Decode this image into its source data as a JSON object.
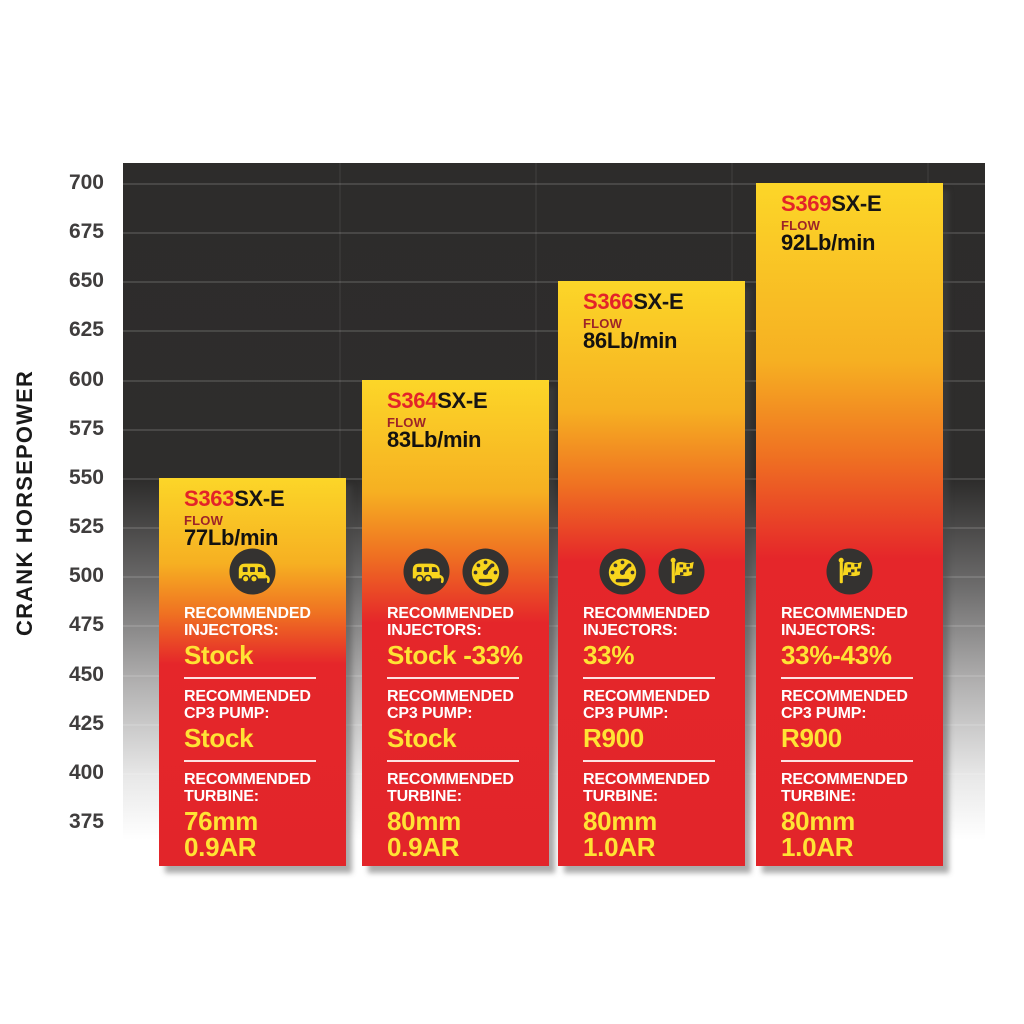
{
  "axis": {
    "label": "CRANK HORSEPOWER"
  },
  "chart_data": {
    "type": "bar",
    "title": "",
    "categories": [
      "S363SX-E",
      "S364SX-E",
      "S366SX-E",
      "S369SX-E"
    ],
    "values": [
      550,
      600,
      650,
      700
    ],
    "xlabel": "",
    "ylabel": "CRANK HORSEPOWER",
    "ylim": [
      375,
      700
    ],
    "yticks": [
      700,
      675,
      650,
      625,
      600,
      575,
      550,
      525,
      500,
      475,
      450,
      425,
      400,
      375
    ],
    "grid": true,
    "legend": "none",
    "bar_gradient": [
      "#fcd628",
      "#e5262a"
    ],
    "flow_lb_per_min": [
      77,
      83,
      86,
      92
    ]
  },
  "bars": [
    {
      "model_prefix": "S363",
      "model_suffix": "SX-E",
      "flow_label": "FLOW",
      "flow_value": "77Lb/min",
      "icons": [
        "camper-icon"
      ],
      "sections": [
        {
          "label_lines": [
            "RECOMMENDED",
            "INJECTORS:"
          ],
          "value_lines": [
            "Stock",
            ""
          ]
        },
        {
          "label_lines": [
            "RECOMMENDED",
            "CP3 PUMP:"
          ],
          "value_lines": [
            "Stock",
            ""
          ]
        },
        {
          "label_lines": [
            "RECOMMENDED",
            "TURBINE:"
          ],
          "value_lines": [
            "76mm",
            "0.9AR"
          ]
        }
      ]
    },
    {
      "model_prefix": "S364",
      "model_suffix": "SX-E",
      "flow_label": "FLOW",
      "flow_value": "83Lb/min",
      "icons": [
        "camper-icon",
        "gauge-icon"
      ],
      "sections": [
        {
          "label_lines": [
            "RECOMMENDED",
            "INJECTORS:"
          ],
          "value_lines": [
            "Stock -33%",
            ""
          ]
        },
        {
          "label_lines": [
            "RECOMMENDED",
            "CP3 PUMP:"
          ],
          "value_lines": [
            "Stock",
            ""
          ]
        },
        {
          "label_lines": [
            "RECOMMENDED",
            "TURBINE:"
          ],
          "value_lines": [
            "80mm",
            "0.9AR"
          ]
        }
      ]
    },
    {
      "model_prefix": "S366",
      "model_suffix": "SX-E",
      "flow_label": "FLOW",
      "flow_value": "86Lb/min",
      "icons": [
        "gauge-icon",
        "flag-icon"
      ],
      "sections": [
        {
          "label_lines": [
            "RECOMMENDED",
            "INJECTORS:"
          ],
          "value_lines": [
            "33%",
            ""
          ]
        },
        {
          "label_lines": [
            "RECOMMENDED",
            "CP3 PUMP:"
          ],
          "value_lines": [
            "R900",
            ""
          ]
        },
        {
          "label_lines": [
            "RECOMMENDED",
            "TURBINE:"
          ],
          "value_lines": [
            "80mm",
            "1.0AR"
          ]
        }
      ]
    },
    {
      "model_prefix": "S369",
      "model_suffix": "SX-E",
      "flow_label": "FLOW",
      "flow_value": "92Lb/min",
      "icons": [
        "flag-icon"
      ],
      "sections": [
        {
          "label_lines": [
            "RECOMMENDED",
            "INJECTORS:"
          ],
          "value_lines": [
            "33%-43%",
            ""
          ]
        },
        {
          "label_lines": [
            "RECOMMENDED",
            "CP3 PUMP:"
          ],
          "value_lines": [
            "R900",
            ""
          ]
        },
        {
          "label_lines": [
            "RECOMMENDED",
            "TURBINE:"
          ],
          "value_lines": [
            "80mm",
            "1.0AR"
          ]
        }
      ]
    }
  ],
  "colors": {
    "plot_background_dark": "#2d2c2b",
    "bar_yellow": "#fcd628",
    "bar_red": "#e5262a",
    "model_prefix_red": "#e32329",
    "flow_label_red": "#9d2428",
    "value_yellow": "#ffe334",
    "label_white": "#ffffff",
    "icon_circle": "#343230",
    "icon_glyph": "#f8d51d",
    "tick_text": "#3f3d3d"
  }
}
